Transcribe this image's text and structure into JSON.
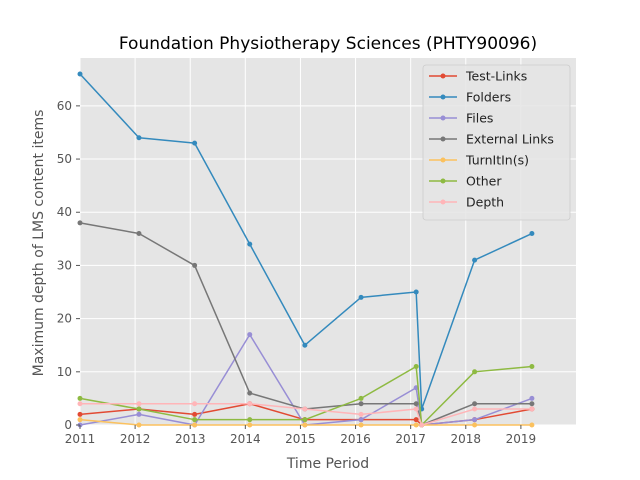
{
  "chart_data": {
    "type": "line",
    "title": "Foundation Physiotherapy Sciences (PHTY90096)",
    "xlabel": "Time Period",
    "ylabel": "Maximum depth of LMS content items",
    "xlim": [
      2011,
      2020
    ],
    "ylim": [
      0,
      69
    ],
    "x_ticks": [
      2011,
      2012,
      2013,
      2014,
      2015,
      2016,
      2017,
      2018,
      2019
    ],
    "y_ticks": [
      0,
      10,
      20,
      30,
      40,
      50,
      60
    ],
    "grid": true,
    "background": "#e5e5e5",
    "legend_position": "top-right",
    "x": [
      2011.0,
      2012.07,
      2013.08,
      2014.08,
      2015.08,
      2016.1,
      2017.1,
      2017.2,
      2018.16,
      2019.2
    ],
    "series": [
      {
        "name": "Test-Links",
        "color": "#e24a33",
        "values": [
          2,
          3,
          2,
          4,
          1,
          1,
          1,
          0,
          1,
          3
        ]
      },
      {
        "name": "Folders",
        "color": "#348abd",
        "values": [
          66,
          54,
          53,
          34,
          15,
          24,
          25,
          3,
          31,
          36
        ]
      },
      {
        "name": "Files",
        "color": "#988ed5",
        "values": [
          0,
          2,
          0,
          17,
          0,
          1,
          7,
          0,
          1,
          5
        ]
      },
      {
        "name": "External Links",
        "color": "#777777",
        "values": [
          38,
          36,
          30,
          6,
          3,
          4,
          4,
          0,
          4,
          4
        ]
      },
      {
        "name": "TurnItIn(s)",
        "color": "#fbc15e",
        "values": [
          1,
          0,
          0,
          0,
          0,
          0,
          0,
          0,
          0,
          0
        ]
      },
      {
        "name": "Other",
        "color": "#8eba42",
        "values": [
          5,
          3,
          1,
          1,
          1,
          5,
          11,
          0,
          10,
          11
        ]
      },
      {
        "name": "Depth",
        "color": "#ffb5b8",
        "values": [
          4,
          4,
          4,
          4,
          3,
          2,
          3,
          0,
          3,
          3
        ]
      }
    ]
  }
}
